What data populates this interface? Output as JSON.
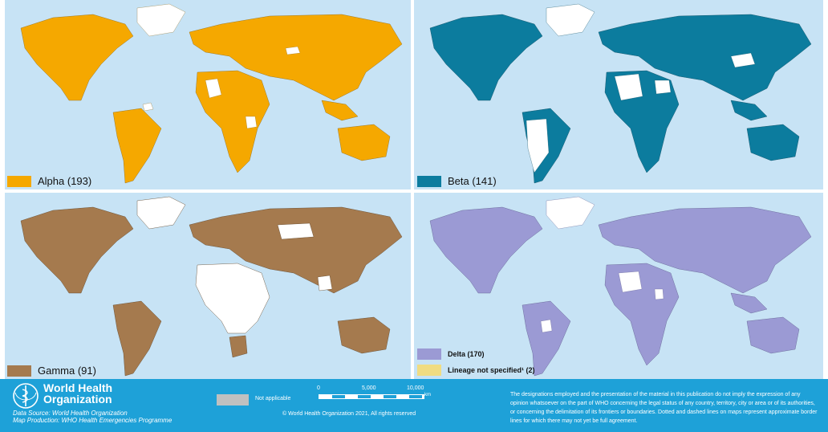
{
  "colors": {
    "ocean": "#c7e3f5",
    "alpha": "#f5a800",
    "beta": "#0c7c9e",
    "gamma": "#a57a4e",
    "delta": "#9b9ad4",
    "lineage_not_specified": "#f0dc82",
    "no_data": "#ffffff",
    "not_applicable": "#c0c0c0",
    "footer": "#1ea1d8"
  },
  "panels": [
    {
      "id": "alpha",
      "legend": "Alpha (193)",
      "fill": "#f5a800"
    },
    {
      "id": "beta",
      "legend": "Beta (141)",
      "fill": "#0c7c9e"
    },
    {
      "id": "gamma",
      "legend": "Gamma (91)",
      "fill": "#a57a4e"
    },
    {
      "id": "delta",
      "legend": "Delta (170)",
      "fill": "#9b9ad4",
      "legend2": "Lineage not specified¹ (2)",
      "fill2": "#f0dc82"
    }
  ],
  "footer": {
    "org_line1": "World Health",
    "org_line2": "Organization",
    "data_source": "Data Source: World Health Organization",
    "map_production": "Map Production: WHO Health Emergencies Programme",
    "not_applicable": "Not applicable",
    "scale_0": "0",
    "scale_mid": "5,000",
    "scale_max": "10,000",
    "scale_unit": "km",
    "copyright": "© World Health Organization 2021, All rights reserved",
    "disclaimer": "The designations employed and the presentation of the material in this publication do not imply the expression of any opinion whatsoever on the part of WHO concerning the legal status of any country, territory, city or area or of its authorities, or concerning the delimitation of its frontiers or boundaries. Dotted and dashed lines on maps represent approximate border lines for which there may not yet be full agreement."
  }
}
